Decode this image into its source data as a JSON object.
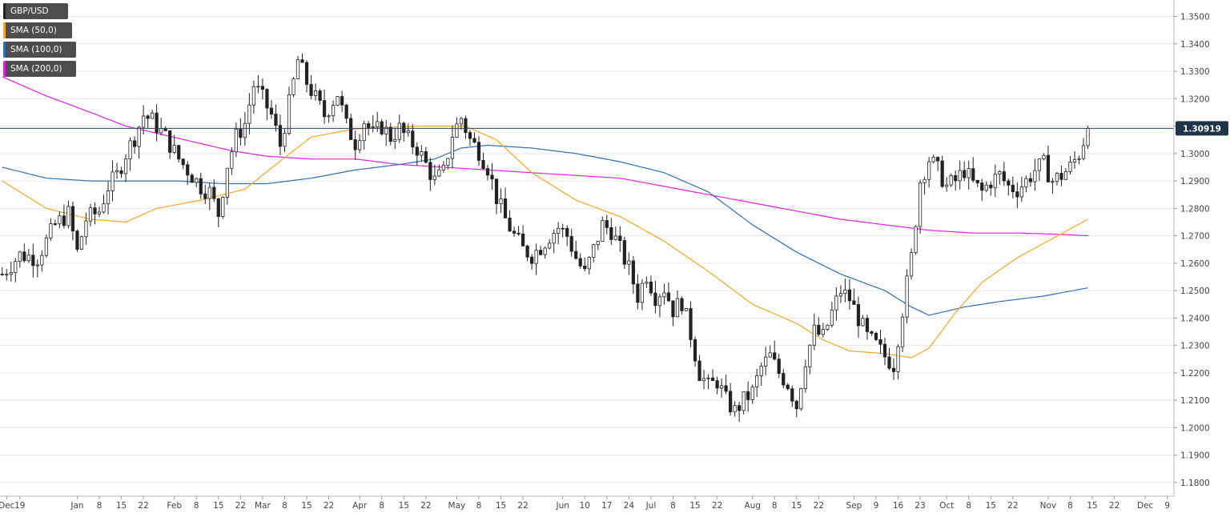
{
  "legend": [
    {
      "label": "GBP/USD",
      "color": "#333333"
    },
    {
      "label": "SMA (50,0)",
      "color": "#f5a623"
    },
    {
      "label": "SMA (100,0)",
      "color": "#2f6fb5"
    },
    {
      "label": "SMA (200,0)",
      "color": "#e020e0"
    }
  ],
  "current_price": {
    "label": "1.30919",
    "value": 1.30919
  },
  "chart_data": {
    "type": "candlestick",
    "title": "",
    "symbol": "GBP/USD",
    "ylim": [
      1.175,
      1.356
    ],
    "y_ticks": [
      "1.3500",
      "1.3400",
      "1.3300",
      "1.3200",
      "1.3100",
      "1.3000",
      "1.2900",
      "1.2800",
      "1.2700",
      "1.2600",
      "1.2500",
      "1.2400",
      "1.2300",
      "1.2200",
      "1.2100",
      "1.2000",
      "1.1900",
      "1.1800"
    ],
    "x_ticks": [
      {
        "label": "Dec",
        "day": 1
      },
      {
        "label": "19",
        "day": 4
      },
      {
        "label": "Jan",
        "day": 17
      },
      {
        "label": "8",
        "day": 22
      },
      {
        "label": "15",
        "day": 27
      },
      {
        "label": "22",
        "day": 32
      },
      {
        "label": "Feb",
        "day": 39
      },
      {
        "label": "8",
        "day": 44
      },
      {
        "label": "15",
        "day": 49
      },
      {
        "label": "22",
        "day": 54
      },
      {
        "label": "Mar",
        "day": 59
      },
      {
        "label": "8",
        "day": 64
      },
      {
        "label": "15",
        "day": 69
      },
      {
        "label": "22",
        "day": 74
      },
      {
        "label": "Apr",
        "day": 81
      },
      {
        "label": "8",
        "day": 86
      },
      {
        "label": "15",
        "day": 91
      },
      {
        "label": "22",
        "day": 96
      },
      {
        "label": "May",
        "day": 103
      },
      {
        "label": "8",
        "day": 108
      },
      {
        "label": "15",
        "day": 113
      },
      {
        "label": "22",
        "day": 118
      },
      {
        "label": "Jun",
        "day": 127
      },
      {
        "label": "10",
        "day": 132
      },
      {
        "label": "17",
        "day": 137
      },
      {
        "label": "24",
        "day": 142
      },
      {
        "label": "Jul",
        "day": 147
      },
      {
        "label": "8",
        "day": 152
      },
      {
        "label": "15",
        "day": 157
      },
      {
        "label": "22",
        "day": 162
      },
      {
        "label": "Aug",
        "day": 170
      },
      {
        "label": "8",
        "day": 175
      },
      {
        "label": "15",
        "day": 180
      },
      {
        "label": "22",
        "day": 185
      },
      {
        "label": "Sep",
        "day": 193
      },
      {
        "label": "9",
        "day": 198
      },
      {
        "label": "16",
        "day": 203
      },
      {
        "label": "23",
        "day": 208
      },
      {
        "label": "Oct",
        "day": 214
      },
      {
        "label": "8",
        "day": 219
      },
      {
        "label": "15",
        "day": 224
      },
      {
        "label": "22",
        "day": 229
      },
      {
        "label": "Nov",
        "day": 237
      },
      {
        "label": "8",
        "day": 242
      },
      {
        "label": "15",
        "day": 247
      },
      {
        "label": "22",
        "day": 252
      },
      {
        "label": "Dec",
        "day": 259
      },
      {
        "label": "9",
        "day": 264
      }
    ],
    "price_anchors": [
      [
        0,
        1.256
      ],
      [
        4,
        1.263
      ],
      [
        8,
        1.262
      ],
      [
        12,
        1.274
      ],
      [
        15,
        1.278
      ],
      [
        17,
        1.264
      ],
      [
        19,
        1.276
      ],
      [
        22,
        1.279
      ],
      [
        24,
        1.288
      ],
      [
        26,
        1.292
      ],
      [
        28,
        1.3
      ],
      [
        30,
        1.306
      ],
      [
        32,
        1.314
      ],
      [
        34,
        1.312
      ],
      [
        37,
        1.306
      ],
      [
        40,
        1.298
      ],
      [
        43,
        1.292
      ],
      [
        45,
        1.288
      ],
      [
        47,
        1.286
      ],
      [
        49,
        1.278
      ],
      [
        51,
        1.296
      ],
      [
        53,
        1.306
      ],
      [
        55,
        1.311
      ],
      [
        57,
        1.325
      ],
      [
        59,
        1.32
      ],
      [
        61,
        1.314
      ],
      [
        63,
        1.303
      ],
      [
        65,
        1.318
      ],
      [
        67,
        1.334
      ],
      [
        69,
        1.326
      ],
      [
        71,
        1.32
      ],
      [
        73,
        1.314
      ],
      [
        76,
        1.322
      ],
      [
        78,
        1.31
      ],
      [
        80,
        1.304
      ],
      [
        82,
        1.312
      ],
      [
        84,
        1.307
      ],
      [
        86,
        1.31
      ],
      [
        88,
        1.306
      ],
      [
        90,
        1.309
      ],
      [
        92,
        1.305
      ],
      [
        94,
        1.302
      ],
      [
        96,
        1.296
      ],
      [
        98,
        1.29
      ],
      [
        100,
        1.293
      ],
      [
        102,
        1.307
      ],
      [
        104,
        1.313
      ],
      [
        106,
        1.305
      ],
      [
        108,
        1.301
      ],
      [
        110,
        1.295
      ],
      [
        112,
        1.284
      ],
      [
        114,
        1.276
      ],
      [
        116,
        1.27
      ],
      [
        118,
        1.265
      ],
      [
        120,
        1.263
      ],
      [
        122,
        1.266
      ],
      [
        124,
        1.27
      ],
      [
        126,
        1.273
      ],
      [
        128,
        1.27
      ],
      [
        130,
        1.262
      ],
      [
        132,
        1.256
      ],
      [
        134,
        1.265
      ],
      [
        136,
        1.274
      ],
      [
        138,
        1.272
      ],
      [
        140,
        1.265
      ],
      [
        142,
        1.258
      ],
      [
        144,
        1.248
      ],
      [
        146,
        1.256
      ],
      [
        148,
        1.248
      ],
      [
        150,
        1.251
      ],
      [
        152,
        1.243
      ],
      [
        154,
        1.246
      ],
      [
        156,
        1.234
      ],
      [
        158,
        1.22
      ],
      [
        160,
        1.215
      ],
      [
        162,
        1.217
      ],
      [
        164,
        1.21
      ],
      [
        166,
        1.206
      ],
      [
        168,
        1.21
      ],
      [
        170,
        1.213
      ],
      [
        172,
        1.222
      ],
      [
        174,
        1.226
      ],
      [
        176,
        1.22
      ],
      [
        178,
        1.216
      ],
      [
        180,
        1.208
      ],
      [
        182,
        1.225
      ],
      [
        184,
        1.235
      ],
      [
        186,
        1.233
      ],
      [
        188,
        1.242
      ],
      [
        190,
        1.25
      ],
      [
        192,
        1.247
      ],
      [
        194,
        1.24
      ],
      [
        196,
        1.233
      ],
      [
        198,
        1.23
      ],
      [
        200,
        1.226
      ],
      [
        202,
        1.223
      ],
      [
        204,
        1.243
      ],
      [
        206,
        1.262
      ],
      [
        208,
        1.29
      ],
      [
        210,
        1.298
      ],
      [
        212,
        1.294
      ],
      [
        214,
        1.288
      ],
      [
        216,
        1.29
      ],
      [
        218,
        1.294
      ],
      [
        220,
        1.289
      ],
      [
        222,
        1.286
      ],
      [
        224,
        1.29
      ],
      [
        226,
        1.292
      ],
      [
        228,
        1.288
      ],
      [
        230,
        1.287
      ],
      [
        232,
        1.29
      ],
      [
        234,
        1.294
      ],
      [
        236,
        1.296
      ],
      [
        238,
        1.29
      ],
      [
        240,
        1.292
      ],
      [
        242,
        1.295
      ],
      [
        244,
        1.3
      ],
      [
        246,
        1.3092
      ]
    ],
    "sma50": [
      [
        0,
        1.29
      ],
      [
        10,
        1.28
      ],
      [
        20,
        1.276
      ],
      [
        28,
        1.275
      ],
      [
        35,
        1.28
      ],
      [
        45,
        1.283
      ],
      [
        55,
        1.287
      ],
      [
        62,
        1.296
      ],
      [
        70,
        1.306
      ],
      [
        80,
        1.309
      ],
      [
        95,
        1.31
      ],
      [
        105,
        1.31
      ],
      [
        112,
        1.305
      ],
      [
        120,
        1.293
      ],
      [
        130,
        1.283
      ],
      [
        140,
        1.277
      ],
      [
        150,
        1.268
      ],
      [
        160,
        1.257
      ],
      [
        170,
        1.245
      ],
      [
        180,
        1.238
      ],
      [
        186,
        1.232
      ],
      [
        192,
        1.228
      ],
      [
        200,
        1.227
      ],
      [
        206,
        1.2255
      ],
      [
        210,
        1.229
      ],
      [
        216,
        1.242
      ],
      [
        222,
        1.253
      ],
      [
        230,
        1.262
      ],
      [
        238,
        1.269
      ],
      [
        246,
        1.276
      ]
    ],
    "sma100": [
      [
        0,
        1.295
      ],
      [
        10,
        1.291
      ],
      [
        20,
        1.29
      ],
      [
        30,
        1.29
      ],
      [
        40,
        1.29
      ],
      [
        50,
        1.289
      ],
      [
        60,
        1.289
      ],
      [
        70,
        1.291
      ],
      [
        80,
        1.294
      ],
      [
        90,
        1.296
      ],
      [
        98,
        1.298
      ],
      [
        104,
        1.302
      ],
      [
        110,
        1.303
      ],
      [
        120,
        1.302
      ],
      [
        130,
        1.3
      ],
      [
        140,
        1.297
      ],
      [
        150,
        1.293
      ],
      [
        160,
        1.286
      ],
      [
        170,
        1.274
      ],
      [
        180,
        1.264
      ],
      [
        190,
        1.256
      ],
      [
        200,
        1.25
      ],
      [
        206,
        1.244
      ],
      [
        210,
        1.241
      ],
      [
        218,
        1.244
      ],
      [
        226,
        1.246
      ],
      [
        236,
        1.248
      ],
      [
        246,
        1.251
      ]
    ],
    "sma200": [
      [
        0,
        1.328
      ],
      [
        10,
        1.321
      ],
      [
        20,
        1.315
      ],
      [
        28,
        1.31
      ],
      [
        36,
        1.307
      ],
      [
        44,
        1.304
      ],
      [
        52,
        1.301
      ],
      [
        60,
        1.299
      ],
      [
        70,
        1.298
      ],
      [
        80,
        1.298
      ],
      [
        90,
        1.296
      ],
      [
        100,
        1.295
      ],
      [
        110,
        1.294
      ],
      [
        120,
        1.293
      ],
      [
        130,
        1.292
      ],
      [
        140,
        1.291
      ],
      [
        150,
        1.288
      ],
      [
        160,
        1.285
      ],
      [
        170,
        1.282
      ],
      [
        180,
        1.279
      ],
      [
        190,
        1.276
      ],
      [
        200,
        1.274
      ],
      [
        210,
        1.272
      ],
      [
        220,
        1.271
      ],
      [
        230,
        1.271
      ],
      [
        240,
        1.2705
      ],
      [
        246,
        1.27
      ]
    ]
  }
}
